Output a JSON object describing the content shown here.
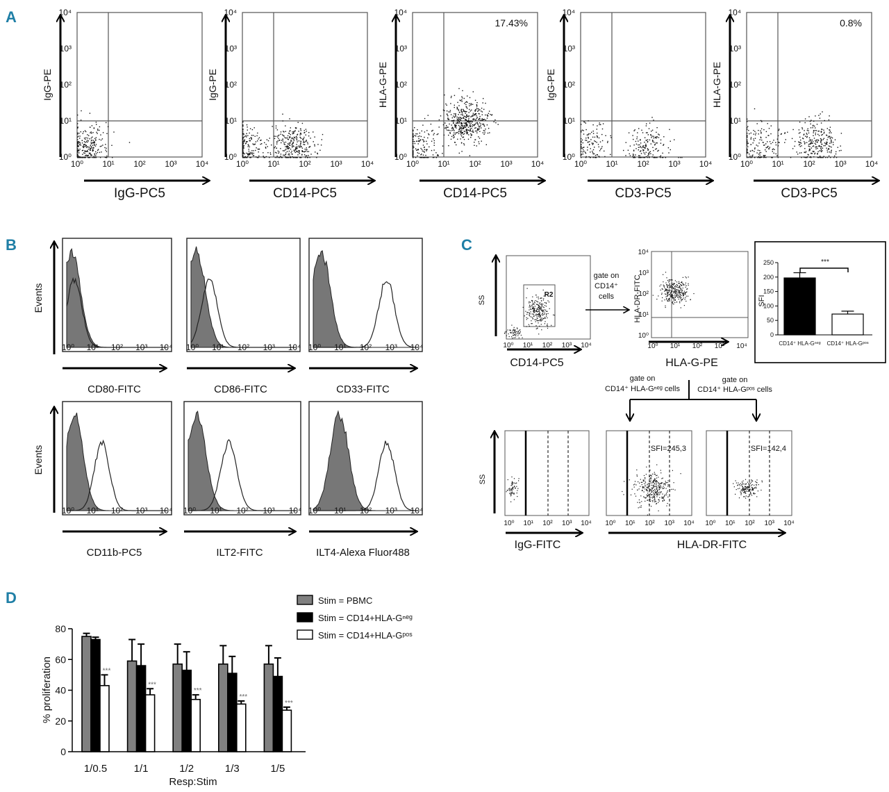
{
  "panels": {
    "a": "A",
    "b": "B",
    "c": "C",
    "d": "D"
  },
  "colors": {
    "letter": "#1f7fa6",
    "bar_pbmc": "#808080",
    "bar_neg": "#000000",
    "bar_pos": "#ffffff"
  },
  "panelA": {
    "plots": [
      {
        "xlabel": "IgG-PC5",
        "ylabel": "IgG-PE",
        "pct": "",
        "clusters": [
          {
            "x": 0.3,
            "y": 0.3,
            "n": 260
          }
        ]
      },
      {
        "xlabel": "CD14-PC5",
        "ylabel": "IgG-PE",
        "pct": "",
        "clusters": [
          {
            "x": 0.1,
            "y": 0.3,
            "n": 200
          },
          {
            "x": 1.6,
            "y": 0.35,
            "n": 300
          }
        ]
      },
      {
        "xlabel": "CD14-PC5",
        "ylabel": "HLA-G-PE",
        "pct": "17.43%",
        "clusters": [
          {
            "x": 0.2,
            "y": 0.3,
            "n": 150
          },
          {
            "x": 1.7,
            "y": 1.0,
            "n": 450
          }
        ]
      },
      {
        "xlabel": "CD3-PC5",
        "ylabel": "IgG-PE",
        "pct": "",
        "clusters": [
          {
            "x": 0.3,
            "y": 0.35,
            "n": 120
          },
          {
            "x": 2.2,
            "y": 0.3,
            "n": 180
          }
        ]
      },
      {
        "xlabel": "CD3-PC5",
        "ylabel": "HLA-G-PE",
        "pct": "0.8%",
        "clusters": [
          {
            "x": 0.4,
            "y": 0.35,
            "n": 160
          },
          {
            "x": 2.2,
            "y": 0.4,
            "n": 260
          }
        ]
      }
    ],
    "xticks": [
      "10⁰",
      "10¹",
      "10²",
      "10³",
      "10⁴"
    ],
    "yticks": [
      "10⁰",
      "10¹",
      "10²",
      "10³",
      "10⁴"
    ]
  },
  "panelB": {
    "ylabel": "Events",
    "histos": [
      {
        "xlabel": "CD80-FITC",
        "iso_mu": 0.2,
        "stain_mu": 0.3
      },
      {
        "xlabel": "CD86-FITC",
        "iso_mu": 0.2,
        "stain_mu": 0.7
      },
      {
        "xlabel": "CD33-FITC",
        "iso_mu": 0.3,
        "stain_mu": 2.8
      },
      {
        "xlabel": "CD11b-PC5",
        "iso_mu": 0.3,
        "stain_mu": 1.4
      },
      {
        "xlabel": "ILT2-FITC",
        "iso_mu": 0.3,
        "stain_mu": 1.5
      },
      {
        "xlabel": "ILT4-Alexa Fluor488",
        "iso_mu": 1.0,
        "stain_mu": 2.8
      }
    ],
    "xticks": [
      "10⁰",
      "10¹",
      "10²",
      "10³",
      "10⁴"
    ]
  },
  "panelC": {
    "plot1": {
      "ylabel": "SS",
      "xlabel": "CD14-PC5",
      "gate": "R2"
    },
    "gate_text": [
      "gate on",
      "CD14⁺",
      "cells"
    ],
    "plot2": {
      "ylabel": "HLA-DR-FITC",
      "xlabel": "HLA-G-PE"
    },
    "inset": {
      "ylabel": "SFI",
      "sig": "***",
      "yticks": [
        "0",
        "50",
        "100",
        "150",
        "200",
        "250"
      ],
      "bars": [
        {
          "label": "CD14⁺ HLA-Gⁿᵉᵍ",
          "value": 197,
          "err": 18
        },
        {
          "label": "CD14⁺ HLA-Gᵖᵒˢ",
          "value": 72,
          "err": 10
        }
      ]
    },
    "branch_left": [
      "gate on",
      "CD14⁺ HLA-Gⁿᵉᵍ cells"
    ],
    "branch_right": [
      "gate on",
      "CD14⁺ HLA-Gᵖᵒˢ cells"
    ],
    "bottom": [
      {
        "xlabel": "IgG-FITC",
        "sfi": ""
      },
      {
        "xlabel": "",
        "sfi": "SFI=245,3"
      },
      {
        "xlabel": "",
        "sfi": "SFI=142,4"
      }
    ],
    "bottom_xlabel": "HLA-DR-FITC",
    "bottom_ylabel": "SS",
    "xticks": [
      "10⁰",
      "10¹",
      "10²",
      "10³",
      "10⁴"
    ]
  },
  "chart_data": {
    "type": "bar",
    "title": "",
    "xlabel": "Resp:Stim",
    "ylabel": "% proliferation",
    "ylim": [
      0,
      80
    ],
    "yticks": [
      "0",
      "20",
      "40",
      "60",
      "80"
    ],
    "categories": [
      "1/0.5",
      "1/1",
      "1/2",
      "1/3",
      "1/5"
    ],
    "series": [
      {
        "name": "Stim = PBMC",
        "values": [
          75,
          59,
          57,
          57,
          57
        ],
        "errors": [
          2,
          14,
          13,
          12,
          12
        ]
      },
      {
        "name": "Stim = CD14+HLA-Gⁿᵉᵍ",
        "values": [
          73,
          56,
          53,
          51,
          49
        ],
        "errors": [
          1.5,
          14,
          12,
          11,
          12
        ]
      },
      {
        "name": "Stim = CD14+HLA-Gᵖᵒˢ",
        "values": [
          43,
          37,
          34,
          31,
          27
        ],
        "errors": [
          7,
          4,
          3,
          2,
          2
        ]
      }
    ],
    "annotations": [
      "***",
      "***",
      "***",
      "***",
      "***"
    ]
  }
}
